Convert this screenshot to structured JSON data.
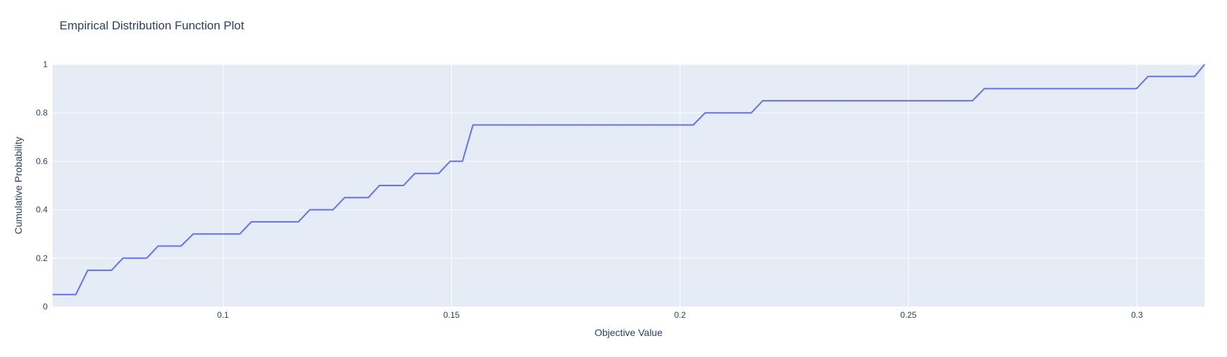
{
  "chart_data": {
    "type": "line",
    "line_shape": "ecdf-step",
    "title": "Empirical Distribution Function Plot",
    "xlabel": "Objective Value",
    "ylabel": "Cumulative Probability",
    "xlim": [
      0.0627,
      0.3148
    ],
    "ylim": [
      0,
      1
    ],
    "x_ticks": [
      0.1,
      0.15,
      0.2,
      0.25,
      0.3
    ],
    "x_tick_labels": [
      "0.1",
      "0.15",
      "0.2",
      "0.25",
      "0.3"
    ],
    "y_ticks": [
      0,
      0.2,
      0.4,
      0.6,
      0.8,
      1
    ],
    "y_tick_labels": [
      "0",
      "0.2",
      "0.4",
      "0.6",
      "0.8",
      "1"
    ],
    "grid": true,
    "legend": false,
    "plot_background": "#e5ecf6",
    "grid_color": "#ffffff",
    "text_color": "#2a3f5f",
    "series": [
      {
        "color": "#636efa",
        "x": [
          0.0627,
          0.0678,
          0.0704,
          0.0756,
          0.0781,
          0.0833,
          0.0858,
          0.0908,
          0.0935,
          0.1037,
          0.1062,
          0.1165,
          0.119,
          0.1241,
          0.1266,
          0.1318,
          0.1342,
          0.1395,
          0.142,
          0.1472,
          0.1497,
          0.1524,
          0.1547,
          0.2029,
          0.2055,
          0.2156,
          0.2181,
          0.264,
          0.2666,
          0.2999,
          0.3024,
          0.3126,
          0.3148
        ],
        "y": [
          0.05,
          0.05,
          0.15,
          0.15,
          0.2,
          0.2,
          0.25,
          0.25,
          0.3,
          0.3,
          0.35,
          0.35,
          0.4,
          0.4,
          0.45,
          0.45,
          0.5,
          0.5,
          0.55,
          0.55,
          0.6,
          0.6,
          0.75,
          0.75,
          0.8,
          0.8,
          0.85,
          0.85,
          0.9,
          0.9,
          0.95,
          0.95,
          1.0
        ]
      }
    ]
  }
}
